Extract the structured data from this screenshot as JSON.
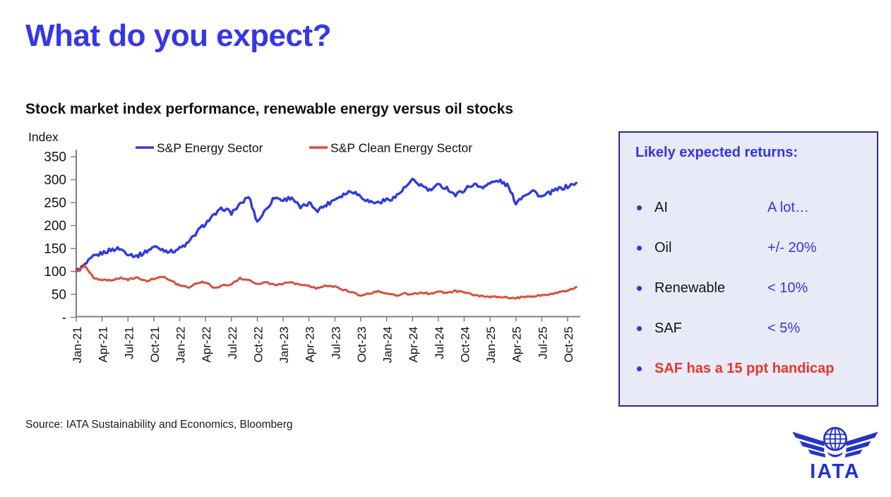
{
  "title": "What do you expect?",
  "chart_title": "Stock market index performance, renewable energy versus oil stocks",
  "source": "Source: IATA Sustainability and Economics, Bloomberg",
  "logo_text": "IATA",
  "colors": {
    "title_blue": "#3437e8",
    "panel_background": "#e9eaf8",
    "panel_border": "#2d2d80",
    "panel_text_blue": "#3333e6",
    "panel_text_red": "#e8352b",
    "energy_line": "#2f3bde",
    "clean_energy_line": "#d8503c",
    "axis_gray": "#7f7f7f",
    "logo_blue": "#2433c9"
  },
  "panel": {
    "heading": "Likely expected returns:",
    "items": [
      {
        "label": "AI",
        "value": "A lot…"
      },
      {
        "label": "Oil",
        "value": "+/- 20%"
      },
      {
        "label": "Renewable",
        "value": "< 10%"
      },
      {
        "label": "SAF",
        "value": "< 5%"
      },
      {
        "label": "SAF has a 15 ppt handicap",
        "value": "",
        "highlight": true
      }
    ]
  },
  "chart_data": {
    "type": "line",
    "title": "Stock market index performance, renewable energy versus oil stocks",
    "xlabel": "",
    "ylabel": "Index",
    "ylim": [
      0,
      350
    ],
    "ytick_values": [
      350,
      300,
      250,
      200,
      150,
      100,
      50,
      0
    ],
    "ytick_labels": [
      "350",
      "300",
      "250",
      "200",
      "150",
      "100",
      "50",
      "-"
    ],
    "x_unit": "months since Jan-2021 (index = month, Jan-21 = 0)",
    "x_tick_months": [
      0,
      3,
      6,
      9,
      12,
      15,
      18,
      21,
      24,
      27,
      30,
      33,
      36,
      39,
      42,
      45,
      48,
      51,
      54,
      57
    ],
    "x_tick_labels": [
      "Jan-21",
      "Apr-21",
      "Jul-21",
      "Oct-21",
      "Jan-22",
      "Apr-22",
      "Jul-22",
      "Oct-22",
      "Jan-23",
      "Apr-23",
      "Jul-23",
      "Oct-23",
      "Jan-24",
      "Apr-24",
      "Jul-24",
      "Oct-24",
      "Jan-25",
      "Apr-25",
      "Jul-25",
      "Oct-25"
    ],
    "x_max": 58.2,
    "grid": false,
    "legend_position": "top",
    "series": [
      {
        "name": "S&P Energy Sector",
        "color": "#2f3bde",
        "jitter": 4.5,
        "values": [
          100,
          114,
          132,
          140,
          147,
          150,
          139,
          133,
          142,
          154,
          148,
          143,
          150,
          162,
          186,
          205,
          222,
          238,
          228,
          245,
          264,
          208,
          235,
          262,
          255,
          262,
          238,
          248,
          234,
          245,
          258,
          268,
          276,
          264,
          252,
          250,
          256,
          262,
          280,
          298,
          288,
          276,
          288,
          282,
          266,
          278,
          290,
          284,
          292,
          298,
          288,
          250,
          268,
          276,
          262,
          272,
          280,
          285,
          293
        ]
      },
      {
        "name": "S&P Clean Energy Sector",
        "color": "#d8503c",
        "jitter": 1.8,
        "values": [
          100,
          112,
          86,
          81,
          80,
          86,
          82,
          86,
          79,
          84,
          89,
          79,
          69,
          65,
          75,
          77,
          64,
          69,
          72,
          85,
          81,
          73,
          77,
          70,
          73,
          76,
          70,
          68,
          63,
          69,
          67,
          60,
          55,
          48,
          52,
          57,
          52,
          48,
          52,
          50,
          55,
          51,
          56,
          53,
          57,
          54,
          49,
          46,
          45,
          44,
          43,
          42,
          45,
          46,
          49,
          51,
          54,
          58,
          66
        ]
      }
    ]
  }
}
